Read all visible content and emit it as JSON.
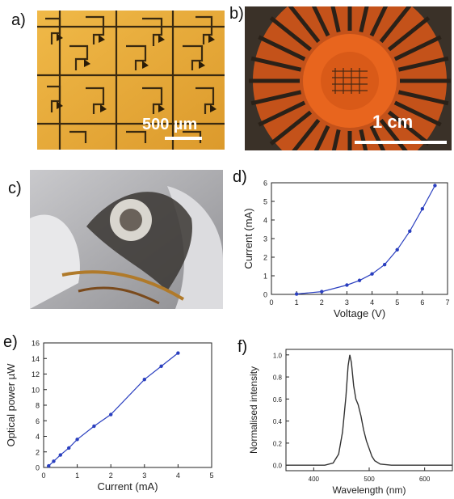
{
  "panel_labels": {
    "a": "a)",
    "b": "b)",
    "c": "c)",
    "d": "d)",
    "e": "e)",
    "f": "f)"
  },
  "scale_bars": {
    "a": "500 µm",
    "b": "1 cm"
  },
  "colors": {
    "gold": "#e7a93a",
    "orange": "#e8651e",
    "series": "#2a3fbf",
    "ink": "#222222"
  },
  "chart_data": [
    {
      "id": "d",
      "type": "line",
      "xlabel": "Voltage (V)",
      "ylabel": "Current (mA)",
      "xlim": [
        0,
        7
      ],
      "ylim": [
        0,
        6
      ],
      "xticks": [
        0,
        1,
        2,
        3,
        4,
        5,
        6,
        7
      ],
      "yticks": [
        0,
        1,
        2,
        3,
        4,
        5,
        6
      ],
      "x": [
        1,
        2,
        3,
        3.5,
        4,
        4.5,
        5,
        5.5,
        6,
        6.5
      ],
      "y": [
        0.02,
        0.15,
        0.5,
        0.75,
        1.1,
        1.6,
        2.4,
        3.4,
        4.6,
        5.85
      ]
    },
    {
      "id": "e",
      "type": "line",
      "xlabel": "Current (mA)",
      "ylabel": "Optical power µW",
      "xlim": [
        0,
        5
      ],
      "ylim": [
        0,
        16
      ],
      "xticks": [
        0,
        1,
        2,
        3,
        4,
        5
      ],
      "yticks": [
        0,
        2,
        4,
        6,
        8,
        10,
        12,
        14,
        16
      ],
      "x": [
        0.15,
        0.3,
        0.5,
        0.75,
        1.0,
        1.5,
        2.0,
        3.0,
        3.5,
        4.0
      ],
      "y": [
        0.2,
        0.8,
        1.6,
        2.5,
        3.6,
        5.3,
        6.8,
        11.3,
        13.0,
        14.7
      ]
    },
    {
      "id": "f",
      "type": "line",
      "xlabel": "Wavelength (nm)",
      "ylabel": "Normalised intensity",
      "xlim": [
        350,
        650
      ],
      "ylim": [
        -0.05,
        1.05
      ],
      "xticks": [
        400,
        500,
        600
      ],
      "yticks": [
        0.0,
        0.2,
        0.4,
        0.6,
        0.8,
        1.0
      ],
      "ytick_labels": [
        "0.0",
        "0.2",
        "0.4",
        "0.6",
        "0.8",
        "1.0"
      ],
      "x": [
        350,
        420,
        435,
        445,
        452,
        458,
        462,
        465,
        468,
        472,
        476,
        480,
        485,
        490,
        495,
        500,
        505,
        510,
        520,
        540,
        600,
        650
      ],
      "y": [
        0,
        0,
        0.02,
        0.1,
        0.3,
        0.62,
        0.9,
        1.0,
        0.93,
        0.72,
        0.6,
        0.55,
        0.45,
        0.32,
        0.22,
        0.15,
        0.08,
        0.04,
        0.01,
        0,
        0,
        0
      ]
    }
  ]
}
